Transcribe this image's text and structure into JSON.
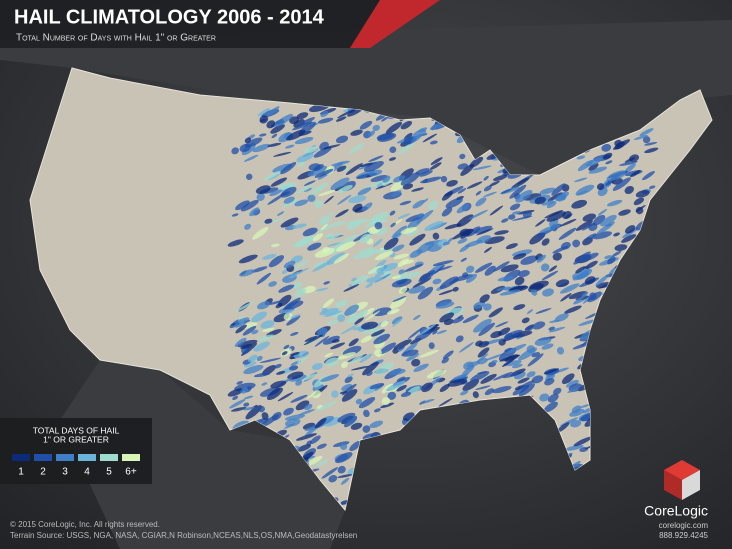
{
  "header": {
    "title": "HAIL CLIMATOLOGY 2006 - 2014",
    "subtitle": "Total Number of Days with  Hail 1\" or Greater"
  },
  "legend": {
    "title_lines": [
      "TOTAL DAYS OF HAIL",
      "1\" OR GREATER"
    ],
    "items": [
      {
        "label": "1",
        "color": "#0c2a7a"
      },
      {
        "label": "2",
        "color": "#1f4fa8"
      },
      {
        "label": "3",
        "color": "#3f7fc8"
      },
      {
        "label": "4",
        "color": "#6ab4dc"
      },
      {
        "label": "5",
        "color": "#9fdccf"
      },
      {
        "label": "6+",
        "color": "#d8f5b8"
      }
    ]
  },
  "footer": {
    "copyright": "© 2015 CoreLogic, Inc.  All rights reserved.",
    "source": "Terrain Source: USGS, NGA, NASA, CGIAR,N Robinson,NCEAS,NLS,OS,NMA,Geodatastyrelsen"
  },
  "brand": {
    "name": "CoreLogic",
    "url": "corelogic.com",
    "phone": "888.929.4245"
  }
}
